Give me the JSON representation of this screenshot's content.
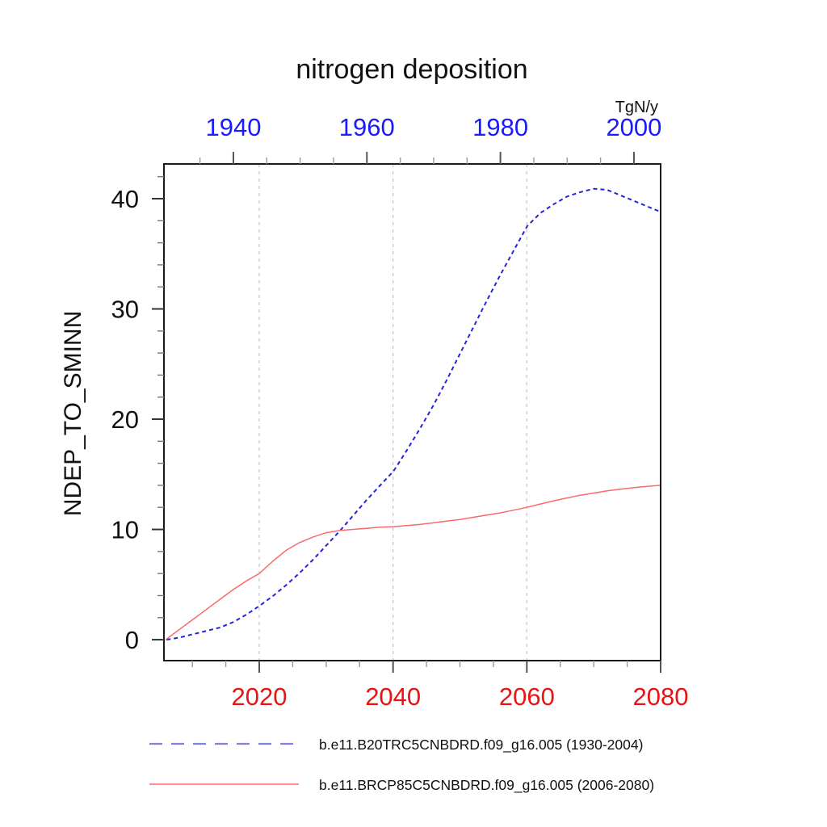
{
  "page": {
    "background": "#ffffff"
  },
  "chart_data": {
    "type": "line",
    "title": "nitrogen deposition",
    "units_label": "TgN/y",
    "ylabel": "NDEP_TO_SMINN",
    "legend_position": "bottom-left, below plot",
    "grid": "vertical dashed gridlines at bottom-axis years 2020, 2040, 2060",
    "colors": {
      "top_axis_labels": "#1a1aff",
      "bottom_axis_labels": "#e81414",
      "historical_series": "#2323dd",
      "rcp_series": "#fb6a6a",
      "legend_dashed_line": "#8080e0",
      "gridline": "#c8c8c8",
      "frame": "#1a1a1a"
    },
    "y_axis": {
      "min": -1.9,
      "max": 43.15,
      "major_ticks": [
        0,
        10,
        20,
        30,
        40
      ],
      "minor_ticks": [
        2,
        4,
        6,
        8,
        12,
        14,
        16,
        18,
        22,
        24,
        26,
        28,
        32,
        34,
        36,
        38,
        42
      ]
    },
    "top_axis": {
      "min": 1929.6,
      "max": 2004.0,
      "major_ticks": [
        1940,
        1960,
        1980,
        2000
      ],
      "minor_ticks": [
        1935,
        1945,
        1950,
        1955,
        1965,
        1970,
        1975,
        1985,
        1990,
        1995
      ]
    },
    "bottom_axis": {
      "min": 2005.75,
      "max": 2080.0,
      "major_ticks": [
        2020,
        2040,
        2060,
        2080
      ],
      "minor_ticks": [
        2010,
        2015,
        2025,
        2030,
        2035,
        2045,
        2050,
        2055,
        2065,
        2070,
        2075
      ],
      "grid_years": [
        2020,
        2040,
        2060
      ]
    },
    "series": [
      {
        "name": "b.e11.B20TRC5CNBDRD.f09_g16.005 (1930-2004)",
        "axis": "top",
        "style": "dashed",
        "color": "#2323dd",
        "x": [
          1930,
          1932,
          1934,
          1936,
          1938,
          1940,
          1942,
          1944,
          1946,
          1948,
          1950,
          1952,
          1954,
          1956,
          1958,
          1960,
          1962,
          1964,
          1966,
          1968,
          1970,
          1972,
          1974,
          1976,
          1978,
          1980,
          1982,
          1984,
          1986,
          1988,
          1990,
          1992,
          1994,
          1996,
          1998,
          2000,
          2002,
          2004
        ],
        "values": [
          0.0,
          0.2,
          0.5,
          0.8,
          1.1,
          1.6,
          2.3,
          3.1,
          4.0,
          5.0,
          6.1,
          7.3,
          8.6,
          9.9,
          11.3,
          12.7,
          14.0,
          15.3,
          17.2,
          19.2,
          21.3,
          23.6,
          26.0,
          28.4,
          30.8,
          33.1,
          35.3,
          37.5,
          38.7,
          39.5,
          40.2,
          40.6,
          40.9,
          40.8,
          40.3,
          39.8,
          39.3,
          38.8
        ]
      },
      {
        "name": "b.e11.BRCP85C5CNBDRD.f09_g16.005 (2006-2080)",
        "axis": "bottom",
        "style": "solid",
        "color": "#fb6a6a",
        "x": [
          2006,
          2008,
          2010,
          2012,
          2014,
          2016,
          2018,
          2020,
          2022,
          2024,
          2026,
          2028,
          2030,
          2032,
          2034,
          2036,
          2038,
          2040,
          2042,
          2044,
          2046,
          2048,
          2050,
          2052,
          2054,
          2056,
          2058,
          2060,
          2062,
          2064,
          2066,
          2068,
          2070,
          2072,
          2074,
          2076,
          2078,
          2080
        ],
        "values": [
          0.0,
          0.9,
          1.8,
          2.7,
          3.6,
          4.5,
          5.3,
          6.0,
          7.1,
          8.1,
          8.8,
          9.3,
          9.7,
          9.9,
          10.0,
          10.1,
          10.2,
          10.25,
          10.35,
          10.45,
          10.6,
          10.75,
          10.9,
          11.1,
          11.3,
          11.5,
          11.75,
          12.0,
          12.3,
          12.6,
          12.85,
          13.1,
          13.3,
          13.5,
          13.65,
          13.8,
          13.9,
          14.0
        ]
      }
    ]
  }
}
